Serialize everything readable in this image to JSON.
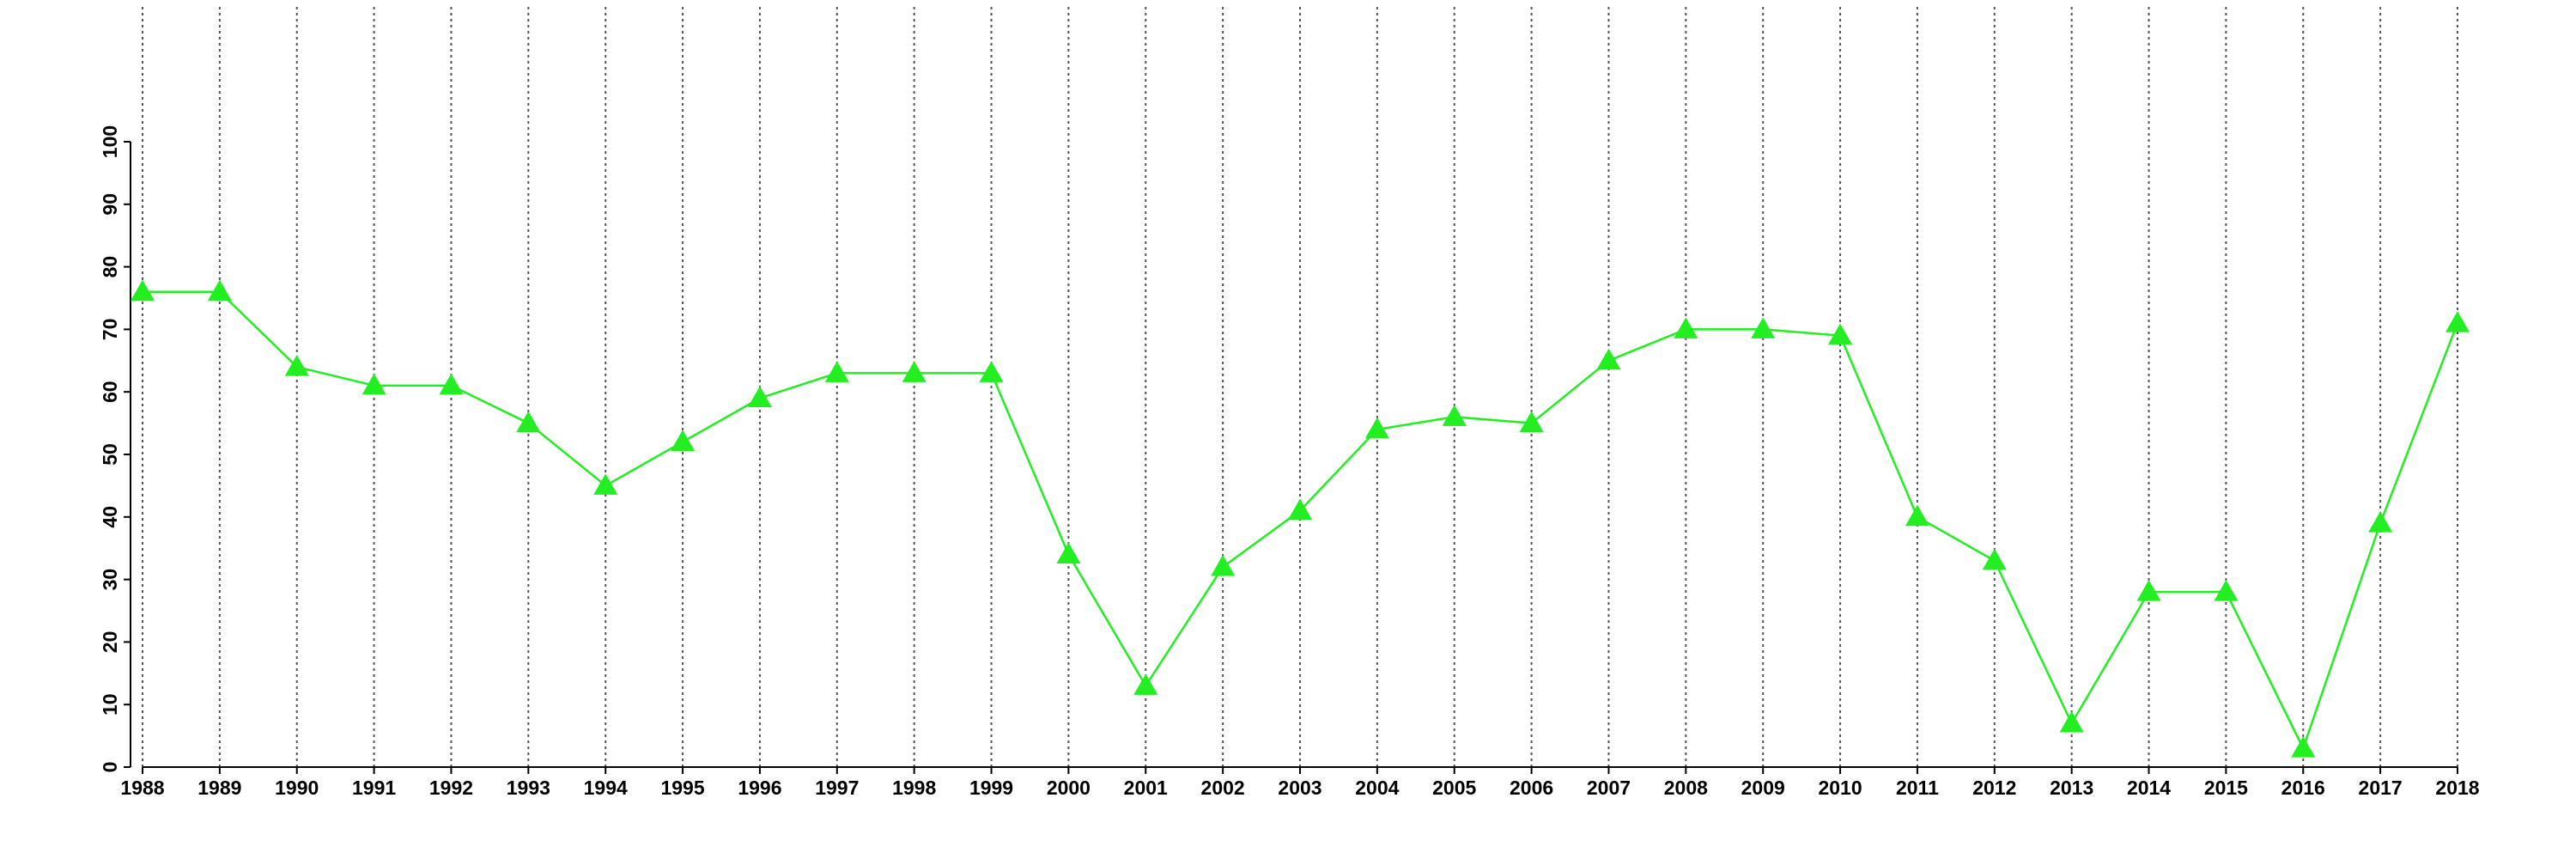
{
  "chart_data": {
    "type": "line",
    "categories": [
      "1988",
      "1989",
      "1990",
      "1991",
      "1992",
      "1993",
      "1994",
      "1995",
      "1996",
      "1997",
      "1998",
      "1999",
      "2000",
      "2001",
      "2002",
      "2003",
      "2004",
      "2005",
      "2006",
      "2007",
      "2008",
      "2009",
      "2010",
      "2011",
      "2012",
      "2013",
      "2014",
      "2015",
      "2016",
      "2017",
      "2018"
    ],
    "series": [
      {
        "color": "#22ee22",
        "marker": "triangle",
        "values": [
          76,
          76,
          64,
          61,
          61,
          55,
          45,
          52,
          59,
          63,
          63,
          63,
          34,
          13,
          32,
          41,
          54,
          56,
          55,
          65,
          70,
          70,
          69,
          40,
          33,
          7,
          28,
          28,
          3,
          39,
          71
        ]
      }
    ],
    "ylim": [
      0,
      100
    ],
    "yticks": [
      0,
      10,
      20,
      30,
      40,
      50,
      60,
      70,
      80,
      90,
      100
    ],
    "grid": true
  }
}
